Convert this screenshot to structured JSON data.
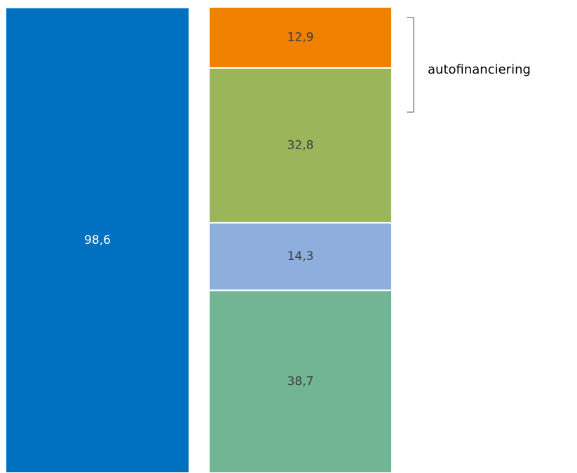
{
  "chart_data": {
    "type": "bar",
    "stacked": true,
    "categories": [
      null,
      null
    ],
    "series": [
      {
        "color": "#0070c0",
        "values": [
          98.6,
          null
        ],
        "value_labels": [
          "98,6",
          null
        ]
      },
      {
        "color": "#72b595",
        "values": [
          null,
          38.7
        ],
        "value_labels": [
          null,
          "38,7"
        ]
      },
      {
        "color": "#8eafdd",
        "values": [
          null,
          14.3
        ],
        "value_labels": [
          null,
          "14,3"
        ]
      },
      {
        "color": "#9bb55a",
        "values": [
          null,
          32.8
        ],
        "value_labels": [
          null,
          "32,8"
        ]
      },
      {
        "color": "#f08000",
        "values": [
          null,
          12.9
        ],
        "value_labels": [
          null,
          "12,9"
        ]
      }
    ],
    "annotation": "autofinanciering"
  }
}
